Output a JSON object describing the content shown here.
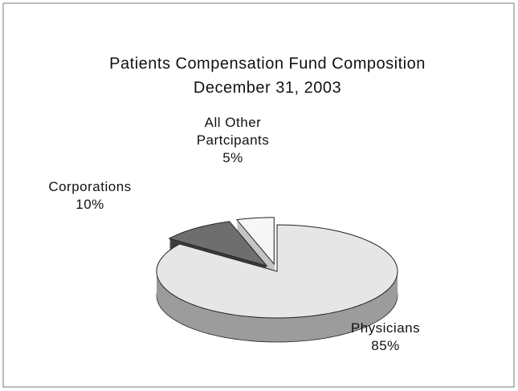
{
  "chart_data": {
    "type": "pie3d",
    "title": "Patients Compensation Fund Composition",
    "subtitle": "December 31, 2003",
    "categories": [
      "Physicians",
      "Corporations",
      "All Other Partcipants"
    ],
    "values": [
      85,
      10,
      5
    ],
    "value_labels": [
      "85%",
      "10%",
      "5%"
    ],
    "colors": [
      "#e6e6e6",
      "#6e6e6e",
      "#f7f7f7"
    ],
    "side_colors": [
      "#9c9c9c",
      "#3c3c3c",
      "#c4c4c4"
    ]
  }
}
